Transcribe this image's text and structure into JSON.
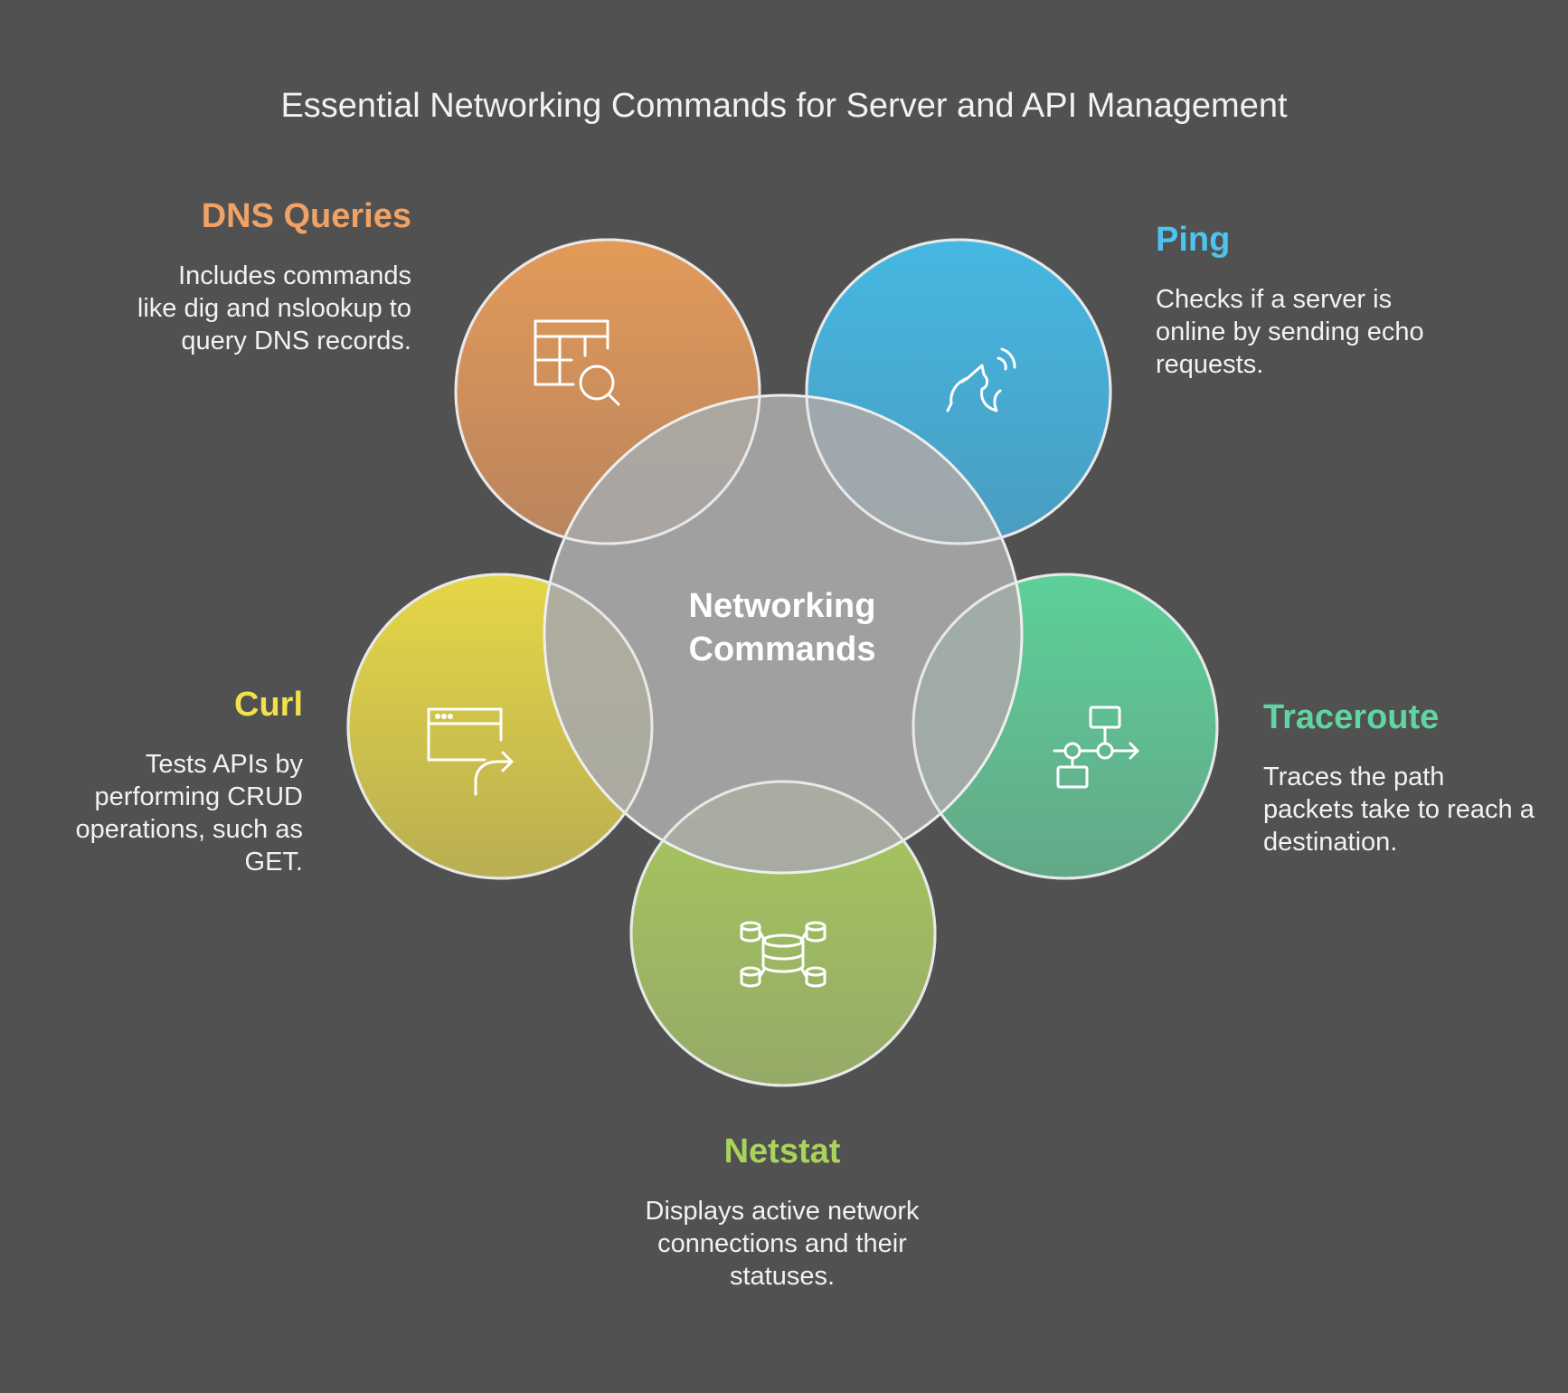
{
  "title": "Essential Networking Commands for Server and API Management",
  "center": {
    "line1": "Networking",
    "line2": "Commands"
  },
  "items": {
    "dns": {
      "title": "DNS Queries",
      "description": "Includes commands like dig and nslookup to query DNS records.",
      "color": "#e09858",
      "icon": "table-search-icon"
    },
    "ping": {
      "title": "Ping",
      "description": "Checks if a server is online by sending echo requests.",
      "color": "#43b2dc",
      "icon": "howling-wolf-icon"
    },
    "curl": {
      "title": "Curl",
      "description": "Tests APIs by performing CRUD operations, such as GET.",
      "color": "#e2d448",
      "icon": "browser-redirect-icon"
    },
    "trace": {
      "title": "Traceroute",
      "description": "Traces the path packets take to reach a destination.",
      "color": "#5ccc98",
      "icon": "flowchart-icon"
    },
    "net": {
      "title": "Netstat",
      "description": "Displays active network connections and their statuses.",
      "color": "#a4c664",
      "icon": "database-network-icon"
    }
  }
}
